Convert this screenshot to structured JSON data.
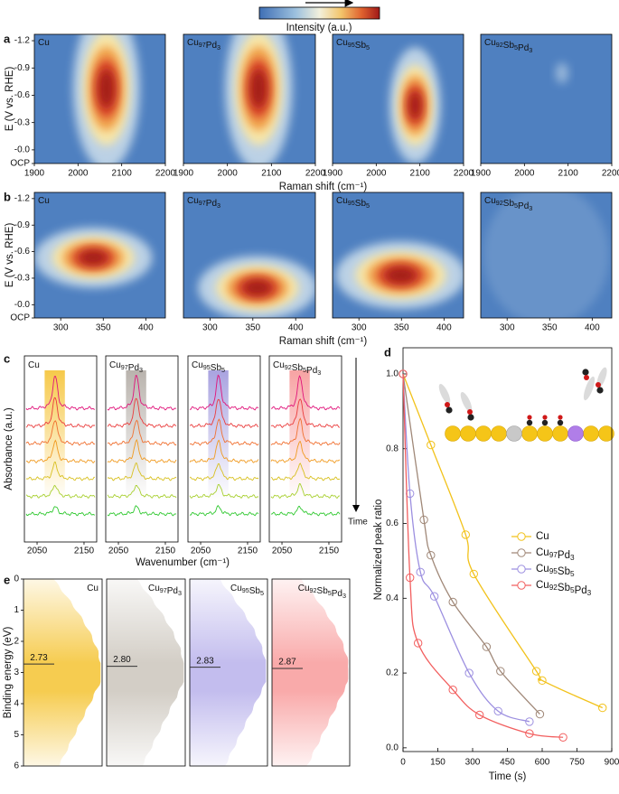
{
  "chart_data": [
    {
      "type": "heatmap",
      "label": "a",
      "colorbar_label": "Intensity (a.u.)",
      "panels": [
        "Cu",
        "Cu97Pd3",
        "Cu95Sb5",
        "Cu92Sb5Pd3"
      ],
      "xlabel": "Raman shift (cm⁻¹)",
      "ylabel": "E (V vs. RHE)",
      "xlim": [
        1900,
        2200
      ],
      "xticks": [
        1900,
        2000,
        2100,
        2200
      ],
      "ylim": [
        0.15,
        -1.27
      ],
      "yticks": [
        {
          "value": 0.15,
          "label": "OCP"
        },
        {
          "value": 0,
          "label": "-0.0"
        },
        -0.3,
        -0.6,
        -0.9,
        -1.2
      ]
    },
    {
      "type": "heatmap",
      "label": "b",
      "panels": [
        "Cu",
        "Cu97Pd3",
        "Cu95Sb5",
        "Cu92Sb5Pd3"
      ],
      "xlabel": "Raman shift (cm⁻¹)",
      "ylabel": "E (V vs. RHE)",
      "xlim": [
        269,
        423
      ],
      "xticks": [
        300,
        350,
        400
      ],
      "ylim": [
        0.15,
        -1.27
      ],
      "yticks": [
        {
          "value": 0.15,
          "label": "OCP"
        },
        {
          "value": 0,
          "label": "-0.0"
        },
        -0.3,
        -0.6,
        -0.9,
        -1.2
      ]
    },
    {
      "type": "spectra",
      "label": "c",
      "panels": [
        "Cu",
        "Cu97Pd3",
        "Cu95Sb5",
        "Cu92Sb5Pd3"
      ],
      "xlabel": "Wavenumber (cm⁻¹)",
      "ylabel": "Absorbance (a.u.)",
      "annotation": "Time",
      "xlim": [
        2023,
        2177
      ],
      "xticks": [
        2050,
        2150
      ]
    },
    {
      "type": "line",
      "label": "d",
      "xlabel": "Time (s)",
      "ylabel": "Normalized peak ratio",
      "xlim": [
        0,
        900
      ],
      "xticks": [
        0,
        150,
        300,
        450,
        600,
        750,
        900
      ],
      "ylim": [
        -0.01,
        1.07
      ],
      "yticks": [
        {
          "value": 0,
          "label": "0.0"
        },
        0.2,
        0.4,
        0.6,
        0.8,
        {
          "value": 1,
          "label": "1.0"
        }
      ],
      "legend": "right",
      "series": [
        {
          "name": "Cu",
          "color": "#f2c21b",
          "x": [
            0,
            120,
            270,
            305,
            575,
            600,
            860
          ],
          "values": [
            1,
            0.81,
            0.57,
            0.465,
            0.205,
            0.18,
            0.107
          ]
        },
        {
          "name": "Cu97Pd3",
          "color": "#a08878",
          "x": [
            0,
            90,
            120,
            215,
            360,
            420,
            590
          ],
          "values": [
            1,
            0.61,
            0.515,
            0.39,
            0.27,
            0.205,
            0.09
          ]
        },
        {
          "name": "Cu95Sb5",
          "color": "#9c8fe0",
          "x": [
            0,
            30,
            75,
            135,
            285,
            410,
            545
          ],
          "values": [
            1,
            0.68,
            0.47,
            0.405,
            0.2,
            0.098,
            0.07
          ]
        },
        {
          "name": "Cu92Sb5Pd3",
          "color": "#f25f5f",
          "x": [
            0,
            30,
            65,
            215,
            330,
            545,
            690
          ],
          "values": [
            1,
            0.455,
            0.28,
            0.155,
            0.088,
            0.038,
            0.028
          ]
        }
      ]
    },
    {
      "type": "profile",
      "label": "e",
      "ylabel": "Binding energy (eV)",
      "ylim": [
        0,
        6
      ],
      "yticks": [
        0,
        1,
        2,
        3,
        4,
        5,
        6
      ],
      "categories": [
        "Cu",
        "Cu97Pd3",
        "Cu95Sb5",
        "Cu92Sb5Pd3"
      ],
      "values": [
        2.73,
        2.8,
        2.83,
        2.87
      ],
      "value_labels": [
        "2.73",
        "2.80",
        "2.83",
        "2.87"
      ],
      "colors": [
        "#f6cc50",
        "#d3cec6",
        "#c3bdee",
        "#f9aaaa"
      ]
    }
  ]
}
